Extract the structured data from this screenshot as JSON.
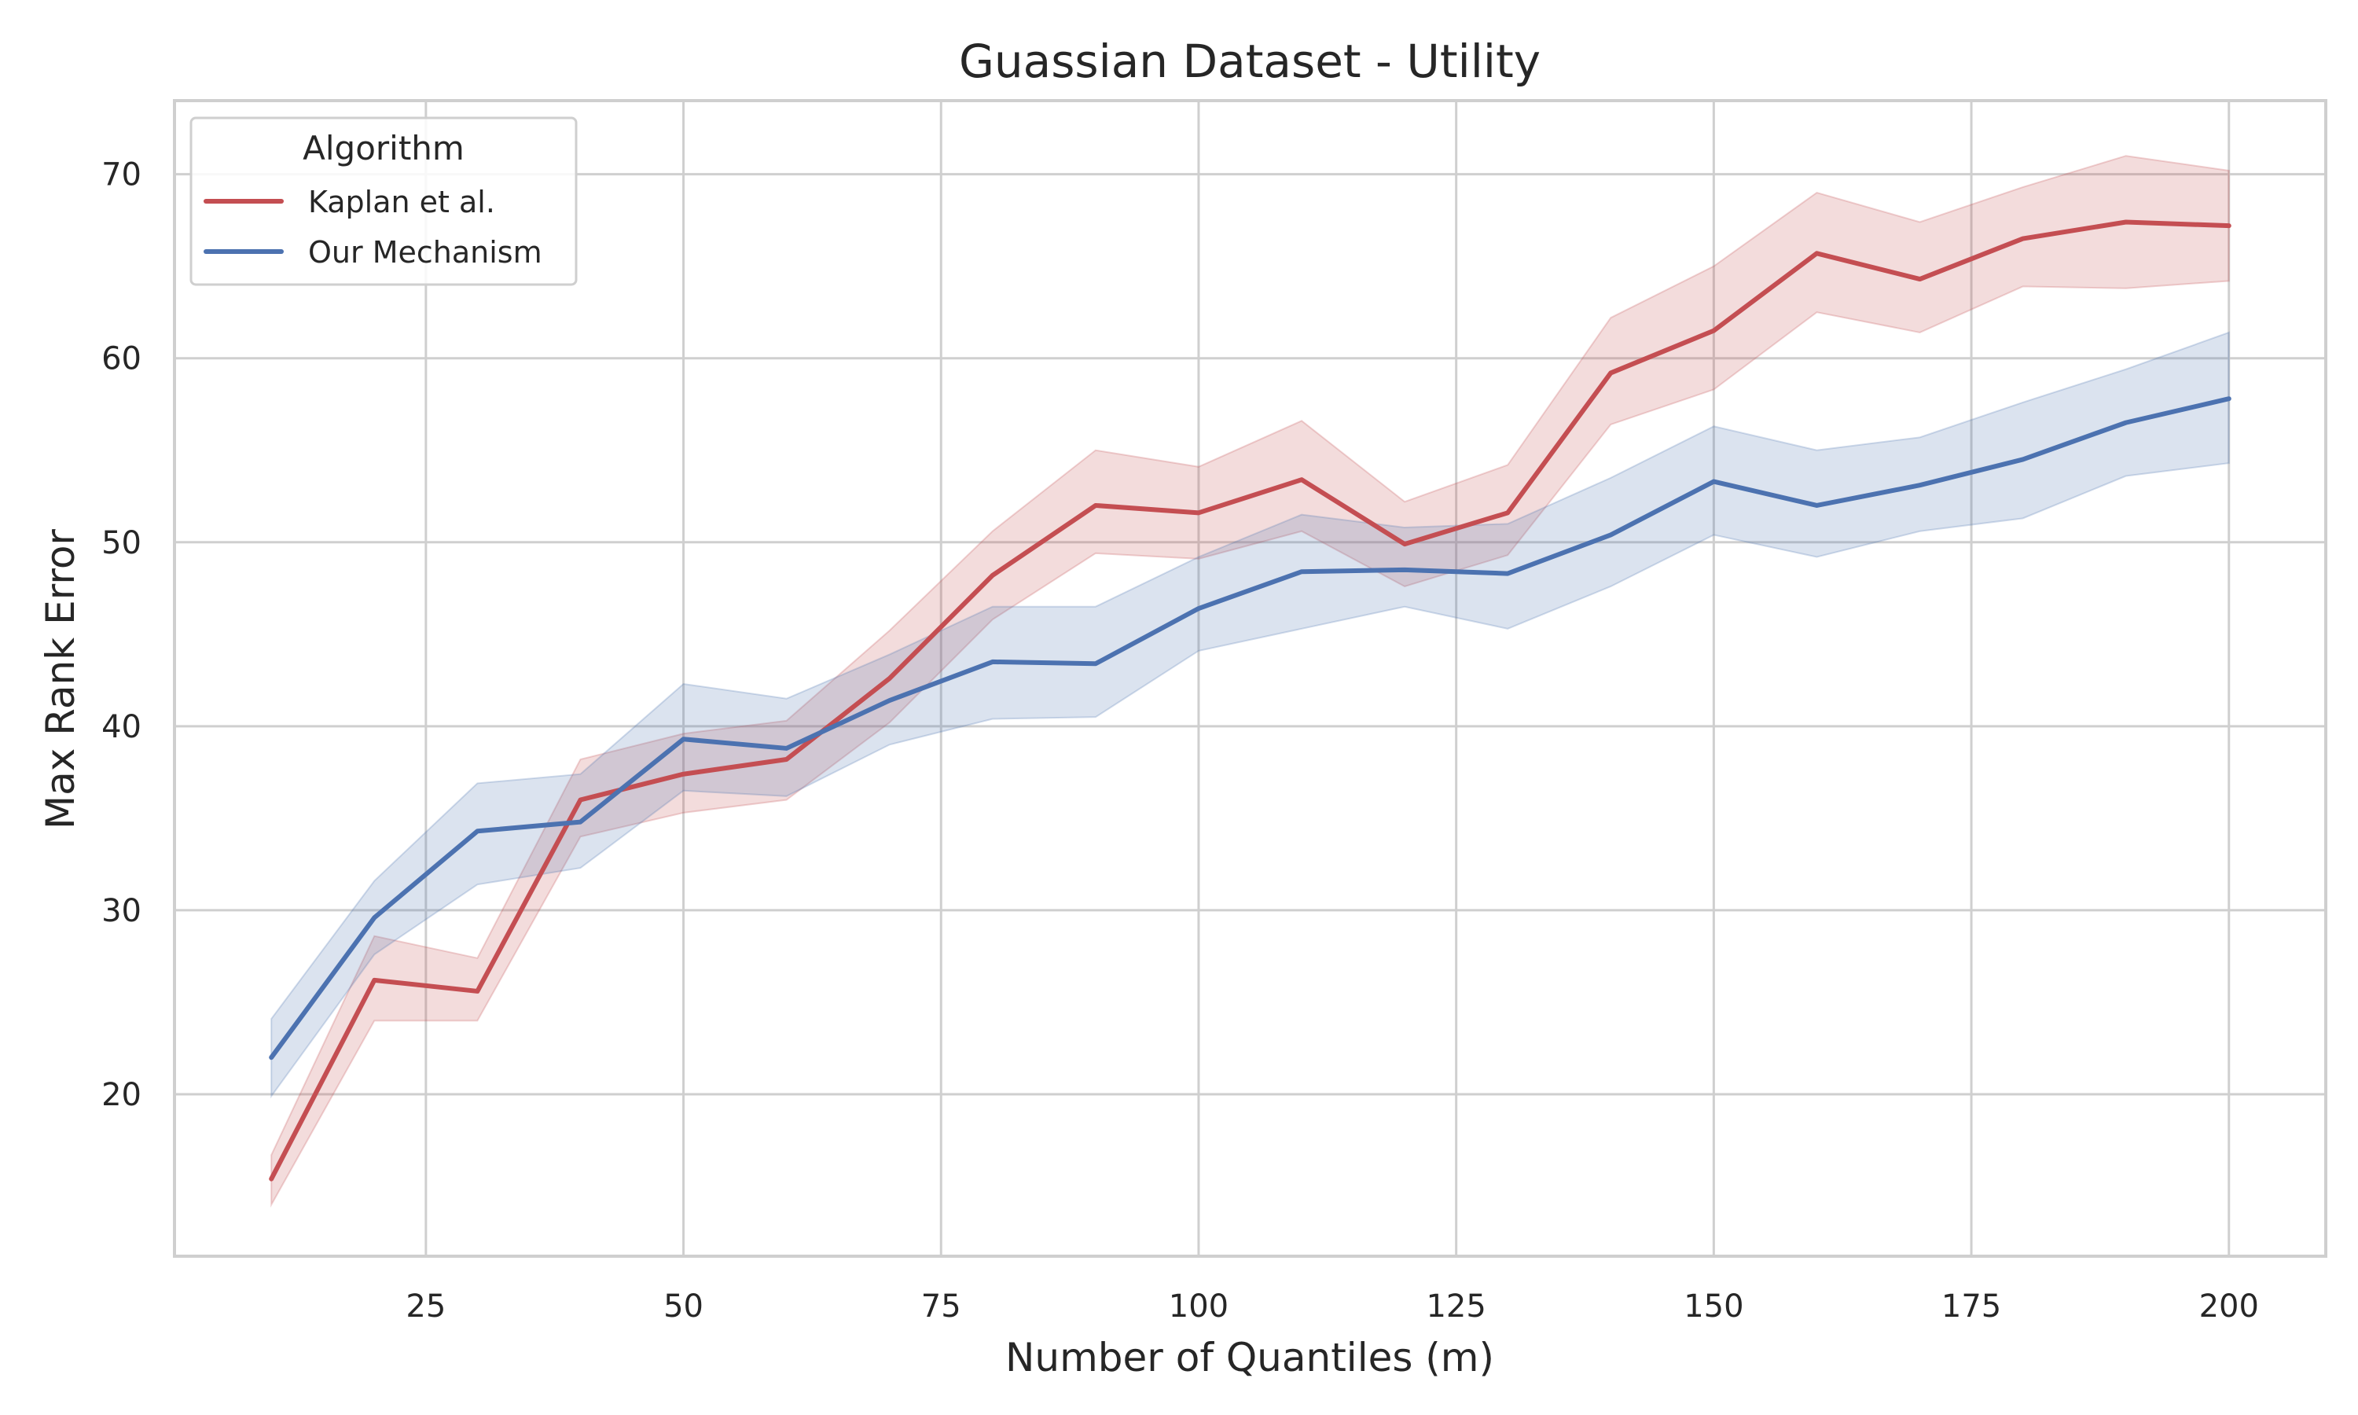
{
  "chart_data": {
    "type": "line",
    "title": "Guassian Dataset - Utility",
    "xlabel": "Number of Quantiles (m)",
    "ylabel": "Max Rank Error",
    "xlim": [
      0.6,
      209.4
    ],
    "ylim": [
      11.2,
      74.0
    ],
    "xticks": [
      25,
      50,
      75,
      100,
      125,
      150,
      175,
      200
    ],
    "yticks": [
      20,
      30,
      40,
      50,
      60,
      70
    ],
    "grid": true,
    "legend": {
      "title": "Algorithm",
      "position": "top-left"
    },
    "x": [
      10,
      20,
      30,
      40,
      50,
      60,
      70,
      80,
      90,
      100,
      110,
      120,
      130,
      140,
      150,
      160,
      170,
      180,
      190,
      200
    ],
    "series": [
      {
        "name": "Kaplan et al.",
        "color": "#c44e52",
        "values": [
          15.4,
          26.2,
          25.6,
          36.0,
          37.4,
          38.2,
          42.6,
          48.2,
          52.0,
          51.6,
          53.4,
          49.9,
          51.6,
          59.2,
          61.5,
          65.7,
          64.3,
          66.5,
          67.4,
          67.2
        ],
        "lower": [
          14.0,
          24.0,
          24.0,
          34.0,
          35.3,
          36.0,
          40.2,
          45.8,
          49.4,
          49.1,
          50.6,
          47.6,
          49.3,
          56.4,
          58.3,
          62.5,
          61.4,
          63.9,
          63.8,
          64.2
        ],
        "upper": [
          16.7,
          28.6,
          27.4,
          38.2,
          39.6,
          40.3,
          45.2,
          50.6,
          55.0,
          54.1,
          56.6,
          52.2,
          54.2,
          62.2,
          65.0,
          69.0,
          67.4,
          69.3,
          71.0,
          70.2
        ]
      },
      {
        "name": "Our Mechanism",
        "color": "#4c72b0",
        "values": [
          22.0,
          29.6,
          34.3,
          34.8,
          39.3,
          38.8,
          41.4,
          43.5,
          43.4,
          46.4,
          48.4,
          48.5,
          48.3,
          50.4,
          53.3,
          52.0,
          53.1,
          54.5,
          56.5,
          57.8
        ],
        "lower": [
          19.9,
          27.6,
          31.4,
          32.3,
          36.5,
          36.2,
          39.0,
          40.4,
          40.5,
          44.1,
          45.3,
          46.5,
          45.3,
          47.6,
          50.4,
          49.2,
          50.6,
          51.3,
          53.6,
          54.3
        ],
        "upper": [
          24.1,
          31.6,
          36.9,
          37.4,
          42.3,
          41.5,
          43.9,
          46.5,
          46.5,
          49.2,
          51.5,
          50.8,
          51.0,
          53.5,
          56.3,
          55.0,
          55.7,
          57.6,
          59.4,
          61.4
        ]
      }
    ]
  }
}
